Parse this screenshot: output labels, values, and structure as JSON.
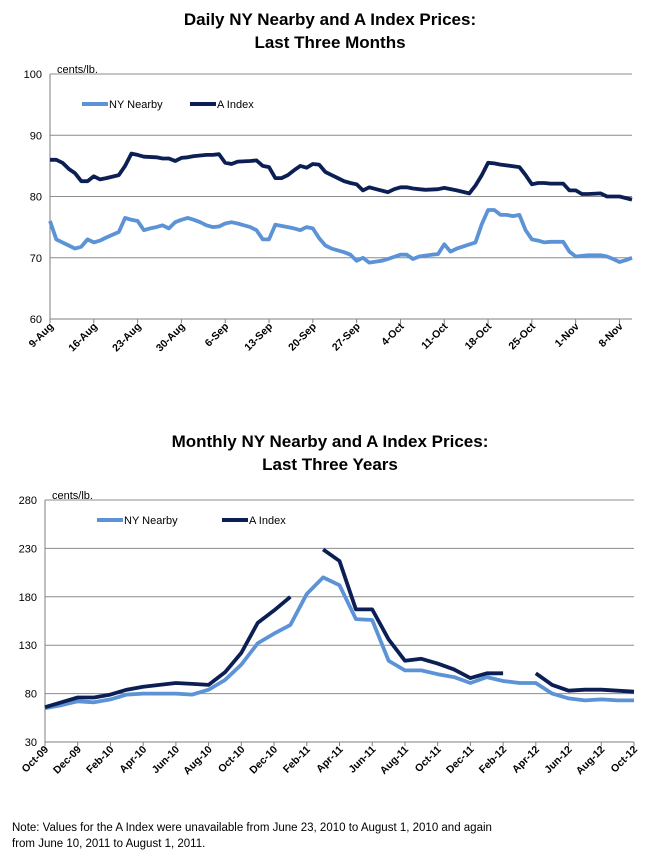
{
  "note_lines": [
    "Note: Values for the A Index were unavailable from June 23, 2010 to August 1, 2010 and again",
    "from June 10, 2011 to August 1, 2011."
  ],
  "colors": {
    "ny_nearby": "#5b93d6",
    "a_index": "#0c1f55",
    "grid": "#8c8c8c",
    "axis": "#7f7f7f"
  },
  "chart_data": [
    {
      "type": "line",
      "title_lines": [
        "Daily NY Nearby and A Index Prices:",
        "Last Three Months"
      ],
      "ylabel": "cents/lb.",
      "ylim": [
        60,
        100
      ],
      "yticks": [
        60,
        70,
        80,
        90,
        100
      ],
      "grid": true,
      "legend_position": "top-left",
      "x_tick_labels": [
        "9-Aug",
        "16-Aug",
        "23-Aug",
        "30-Aug",
        "6-Sep",
        "13-Sep",
        "20-Sep",
        "27-Sep",
        "4-Oct",
        "11-Oct",
        "18-Oct",
        "25-Oct",
        "1-Nov",
        "8-Nov"
      ],
      "x_tick_days": [
        0,
        7,
        14,
        21,
        28,
        35,
        42,
        49,
        56,
        63,
        70,
        77,
        84,
        91
      ],
      "x_unit": "days from 9-Aug",
      "xlim": [
        0,
        93
      ],
      "series": [
        {
          "name": "NY Nearby",
          "color_key": "ny_nearby",
          "points": [
            [
              0,
              76
            ],
            [
              1,
              73
            ],
            [
              3,
              72
            ],
            [
              4,
              71.5
            ],
            [
              5,
              71.8
            ],
            [
              6,
              73
            ],
            [
              7,
              72.5
            ],
            [
              8,
              72.8
            ],
            [
              9,
              73.3
            ],
            [
              11,
              74.2
            ],
            [
              12,
              76.5
            ],
            [
              13,
              76.2
            ],
            [
              14,
              76
            ],
            [
              15,
              74.5
            ],
            [
              16,
              74.8
            ],
            [
              17,
              75
            ],
            [
              18,
              75.3
            ],
            [
              19,
              74.8
            ],
            [
              20,
              75.8
            ],
            [
              21,
              76.2
            ],
            [
              22,
              76.5
            ],
            [
              23,
              76.2
            ],
            [
              24,
              75.8
            ],
            [
              25,
              75.3
            ],
            [
              26,
              75
            ],
            [
              27,
              75.1
            ],
            [
              28,
              75.6
            ],
            [
              29,
              75.8
            ],
            [
              30,
              75.6
            ],
            [
              31,
              75.3
            ],
            [
              32,
              75
            ],
            [
              33,
              74.5
            ],
            [
              34,
              73
            ],
            [
              35,
              73
            ],
            [
              36,
              75.4
            ],
            [
              38,
              75
            ],
            [
              39,
              74.8
            ],
            [
              40,
              74.5
            ],
            [
              41,
              75
            ],
            [
              42,
              74.8
            ],
            [
              43,
              73.2
            ],
            [
              44,
              72
            ],
            [
              45,
              71.5
            ],
            [
              46,
              71.2
            ],
            [
              47,
              70.9
            ],
            [
              48,
              70.5
            ],
            [
              49,
              69.5
            ],
            [
              50,
              70
            ],
            [
              51,
              69.2
            ],
            [
              53,
              69.5
            ],
            [
              54,
              69.8
            ],
            [
              56,
              70.5
            ],
            [
              57,
              70.5
            ],
            [
              58,
              69.8
            ],
            [
              59,
              70.2
            ],
            [
              61,
              70.5
            ],
            [
              62,
              70.6
            ],
            [
              63,
              72.2
            ],
            [
              64,
              71
            ],
            [
              65,
              71.5
            ],
            [
              68,
              72.5
            ],
            [
              69,
              75.5
            ],
            [
              70,
              77.8
            ],
            [
              71,
              77.8
            ],
            [
              72,
              77
            ],
            [
              73,
              77
            ],
            [
              74,
              76.8
            ],
            [
              75,
              77
            ],
            [
              76,
              74.5
            ],
            [
              77,
              73
            ],
            [
              78,
              72.8
            ],
            [
              79,
              72.5
            ],
            [
              80,
              72.6
            ],
            [
              81,
              72.6
            ],
            [
              82,
              72.6
            ],
            [
              83,
              71
            ],
            [
              84,
              70.2
            ],
            [
              85,
              70.3
            ],
            [
              86,
              70.4
            ],
            [
              87,
              70.4
            ],
            [
              88,
              70.4
            ],
            [
              89,
              70.2
            ],
            [
              90,
              69.8
            ],
            [
              91,
              69.3
            ],
            [
              92,
              69.6
            ],
            [
              93,
              70
            ]
          ]
        },
        {
          "name": "A Index",
          "color_key": "a_index",
          "points": [
            [
              0,
              86
            ],
            [
              1,
              86
            ],
            [
              2,
              85.5
            ],
            [
              3,
              84.5
            ],
            [
              4,
              83.8
            ],
            [
              5,
              82.5
            ],
            [
              6,
              82.5
            ],
            [
              7,
              83.3
            ],
            [
              8,
              82.8
            ],
            [
              9,
              83
            ],
            [
              11,
              83.5
            ],
            [
              12,
              85
            ],
            [
              13,
              87
            ],
            [
              14,
              86.8
            ],
            [
              15,
              86.5
            ],
            [
              17,
              86.4
            ],
            [
              18,
              86.2
            ],
            [
              19,
              86.2
            ],
            [
              20,
              85.8
            ],
            [
              21,
              86.3
            ],
            [
              22,
              86.4
            ],
            [
              23,
              86.6
            ],
            [
              24,
              86.7
            ],
            [
              25,
              86.8
            ],
            [
              26,
              86.8
            ],
            [
              27,
              86.9
            ],
            [
              28,
              85.5
            ],
            [
              29,
              85.3
            ],
            [
              30,
              85.7
            ],
            [
              32,
              85.8
            ],
            [
              33,
              85.9
            ],
            [
              34,
              85
            ],
            [
              35,
              84.8
            ],
            [
              36,
              83
            ],
            [
              37,
              83
            ],
            [
              38,
              83.5
            ],
            [
              39,
              84.3
            ],
            [
              40,
              85
            ],
            [
              41,
              84.7
            ],
            [
              42,
              85.3
            ],
            [
              43,
              85.2
            ],
            [
              44,
              84
            ],
            [
              45,
              83.5
            ],
            [
              46,
              83
            ],
            [
              47,
              82.5
            ],
            [
              48,
              82.2
            ],
            [
              49,
              82
            ],
            [
              50,
              81
            ],
            [
              51,
              81.5
            ],
            [
              54,
              80.7
            ],
            [
              55,
              81.2
            ],
            [
              56,
              81.5
            ],
            [
              57,
              81.5
            ],
            [
              58,
              81.3
            ],
            [
              59,
              81.2
            ],
            [
              60,
              81.1
            ],
            [
              62,
              81.2
            ],
            [
              63,
              81.4
            ],
            [
              65,
              81
            ],
            [
              67,
              80.5
            ],
            [
              68,
              81.8
            ],
            [
              69,
              83.5
            ],
            [
              70,
              85.5
            ],
            [
              71,
              85.4
            ],
            [
              72,
              85.2
            ],
            [
              75,
              84.8
            ],
            [
              76,
              83.5
            ],
            [
              77,
              82
            ],
            [
              78,
              82.2
            ],
            [
              79,
              82.2
            ],
            [
              80,
              82.1
            ],
            [
              81,
              82.1
            ],
            [
              82,
              82.1
            ],
            [
              83,
              81
            ],
            [
              84,
              81
            ],
            [
              85,
              80.4
            ],
            [
              86,
              80.4
            ],
            [
              88,
              80.5
            ],
            [
              89,
              80
            ],
            [
              91,
              80
            ],
            [
              93,
              79.5
            ]
          ]
        }
      ]
    },
    {
      "type": "line",
      "title_lines": [
        "Monthly NY Nearby and A Index Prices:",
        "Last Three Years"
      ],
      "ylabel": "cents/lb.",
      "ylim": [
        30,
        280
      ],
      "yticks": [
        30,
        80,
        130,
        180,
        230,
        280
      ],
      "grid": true,
      "legend_position": "top-left",
      "x_labels": [
        "Oct-09",
        "Dec-09",
        "Feb-10",
        "Apr-10",
        "Jun-10",
        "Aug-10",
        "Oct-10",
        "Dec-10",
        "Feb-11",
        "Apr-11",
        "Jun-11",
        "Aug-11",
        "Oct-11",
        "Dec-11",
        "Feb-12",
        "Apr-12",
        "Jun-12",
        "Aug-12",
        "Oct-12"
      ],
      "x_label_month_index": [
        0,
        2,
        4,
        6,
        8,
        10,
        12,
        14,
        16,
        18,
        20,
        22,
        24,
        26,
        28,
        30,
        32,
        34,
        36
      ],
      "x_unit": "months from Oct-09",
      "xlim": [
        0,
        36
      ],
      "series": [
        {
          "name": "NY Nearby",
          "color_key": "ny_nearby",
          "values": [
            65,
            68,
            72,
            71,
            74,
            79,
            80,
            80,
            80,
            79,
            84,
            94,
            110,
            132,
            142,
            151,
            183,
            200,
            192,
            157,
            156,
            114,
            104,
            104,
            100,
            97,
            91,
            97,
            93,
            91,
            91,
            80,
            75,
            73,
            74,
            73,
            73
          ]
        },
        {
          "name": "A Index",
          "color_key": "a_index",
          "values": [
            66,
            71,
            76,
            76,
            79,
            84,
            87,
            89,
            91,
            90,
            89,
            102,
            122,
            153,
            166,
            180,
            null,
            229,
            217,
            167,
            167,
            136,
            114,
            116,
            111,
            105,
            96,
            101,
            101,
            null,
            101,
            89,
            83,
            84,
            84,
            83,
            82
          ]
        }
      ]
    }
  ]
}
